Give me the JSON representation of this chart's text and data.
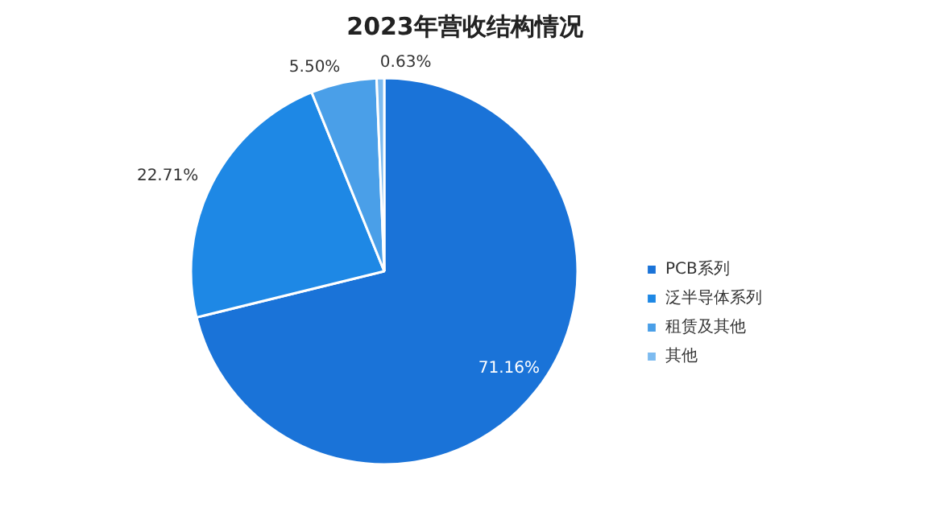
{
  "chart_data": {
    "type": "pie",
    "title": "2023年营收结构情况",
    "categories": [
      "PCB系列",
      "泛半导体系列",
      "租赁及其他",
      "其他"
    ],
    "values": [
      71.16,
      22.71,
      5.5,
      0.63
    ],
    "colors": [
      "#1a73d8",
      "#1e88e5",
      "#4a9fe8",
      "#7dbbf0"
    ],
    "value_labels": [
      "71.16%",
      "22.71%",
      "5.50%",
      "0.63%"
    ],
    "legend": "right"
  }
}
